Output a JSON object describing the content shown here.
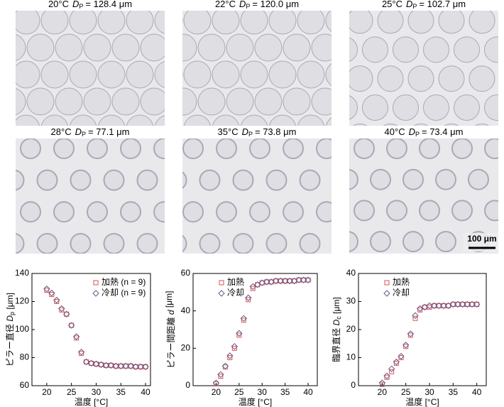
{
  "micrographs": [
    {
      "temp": "20°C",
      "symbol": "D",
      "sub": "P",
      "value": "= 128.4 μm"
    },
    {
      "temp": "22°C",
      "symbol": "D",
      "sub": "P",
      "value": "= 120.0 μm"
    },
    {
      "temp": "25°C",
      "symbol": "D",
      "sub": "P",
      "value": "= 102.7 μm"
    },
    {
      "temp": "28°C",
      "symbol": "D",
      "sub": "P",
      "value": "= 77.1 μm"
    },
    {
      "temp": "35°C",
      "symbol": "D",
      "sub": "P",
      "value": "= 73.8 μm"
    },
    {
      "temp": "40°C",
      "symbol": "D",
      "sub": "P",
      "value": "= 73.4 μm"
    }
  ],
  "scale_bar": "100 μm",
  "chart_data": [
    {
      "type": "scatter",
      "xlabel": "温度 [°C]",
      "ylabel": [
        "ピラー直径 ",
        "D",
        "p",
        " [μm]"
      ],
      "x": [
        20,
        21,
        22,
        23,
        24,
        25,
        26,
        27,
        28,
        29,
        30,
        31,
        32,
        33,
        34,
        35,
        36,
        37,
        38,
        39,
        40
      ],
      "xlim": [
        17,
        41
      ],
      "xticks": [
        20,
        25,
        30,
        35,
        40
      ],
      "ylim": [
        60,
        140
      ],
      "yticks": [
        60,
        80,
        100,
        120,
        140
      ],
      "series": [
        {
          "name": "加熱 (n = 9)",
          "color": "#d9534f",
          "marker": "square",
          "values": [
            128,
            125,
            120,
            114,
            111,
            103,
            94,
            83,
            77,
            76,
            75.5,
            75,
            74.5,
            74.5,
            74,
            74,
            74,
            74,
            73.5,
            73.5,
            73.5
          ]
        },
        {
          "name": "冷却 (n = 9)",
          "color": "#6a5a8c",
          "marker": "diamond",
          "values": [
            129,
            126,
            121,
            115,
            111,
            103,
            95,
            84,
            77,
            76,
            75.5,
            75,
            74.5,
            74.5,
            74,
            74,
            74,
            74,
            73.5,
            73.5,
            73.5
          ]
        }
      ]
    },
    {
      "type": "scatter",
      "xlabel": "温度 [°C]",
      "ylabel": [
        "ピラー間距離 ",
        "d",
        "",
        " [μm]"
      ],
      "x": [
        20,
        21,
        22,
        23,
        24,
        25,
        26,
        27,
        28,
        29,
        30,
        31,
        32,
        33,
        34,
        35,
        36,
        37,
        38,
        39,
        40
      ],
      "xlim": [
        15,
        42
      ],
      "xticks": [
        20,
        25,
        30,
        35,
        40
      ],
      "ylim": [
        0,
        60
      ],
      "yticks": [
        0,
        20,
        40,
        60
      ],
      "series": [
        {
          "name": "加熱",
          "color": "#d9534f",
          "marker": "square",
          "values": [
            1,
            5,
            10,
            15,
            20,
            27,
            35,
            46,
            52,
            54,
            55,
            55.5,
            55.5,
            56,
            56,
            56,
            56,
            56,
            56.5,
            56.5,
            56.5
          ]
        },
        {
          "name": "冷却",
          "color": "#6a5a8c",
          "marker": "diamond",
          "values": [
            1.5,
            6,
            10.5,
            16,
            21,
            28,
            36,
            47,
            53,
            54,
            55,
            55.5,
            55.5,
            56,
            56,
            56,
            56,
            56,
            56.5,
            56.5,
            56.5
          ]
        }
      ]
    },
    {
      "type": "scatter",
      "xlabel": "温度 [°C]",
      "ylabel": [
        "臨界直径 ",
        "D",
        "c",
        " [μm]"
      ],
      "x": [
        20,
        21,
        22,
        23,
        24,
        25,
        26,
        27,
        28,
        29,
        30,
        31,
        32,
        33,
        34,
        35,
        36,
        37,
        38,
        39,
        40
      ],
      "xlim": [
        15,
        42
      ],
      "xticks": [
        20,
        25,
        30,
        35,
        40
      ],
      "ylim": [
        0,
        40
      ],
      "yticks": [
        0,
        10,
        20,
        30,
        40
      ],
      "series": [
        {
          "name": "加熱",
          "color": "#d9534f",
          "marker": "square",
          "values": [
            0.5,
            3,
            5,
            8,
            10,
            14,
            18,
            24,
            27,
            28,
            28,
            28.5,
            28.5,
            28.5,
            28.5,
            29,
            29,
            29,
            29,
            29,
            29
          ]
        },
        {
          "name": "冷却",
          "color": "#6a5a8c",
          "marker": "diamond",
          "values": [
            1,
            3.5,
            6,
            8.5,
            10.5,
            14.5,
            18.5,
            25,
            27.5,
            28,
            28.5,
            28.5,
            28.5,
            28.5,
            28.5,
            29,
            29,
            29,
            29,
            29,
            29
          ]
        }
      ]
    }
  ]
}
